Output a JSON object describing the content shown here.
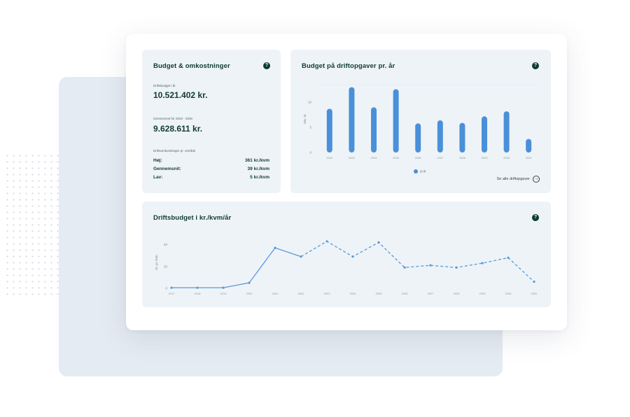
{
  "budget": {
    "title": "Budget & omkostninger",
    "help": "?",
    "driftsbudget_label": "Driftsbudget i år",
    "driftsbudget_value": "10.521.402 kr.",
    "gennemsnit_label": "Gennemsnit for 2020 - 2030",
    "gennemsnit_value": "9.628.611 kr.",
    "omk_label": "Driftsomkostninger pr. område",
    "rows": [
      {
        "label": "Høj:",
        "value": "361 kr./kvm"
      },
      {
        "label": "Gennemsnit:",
        "value": "39 kr./kvm"
      },
      {
        "label": "Lav:",
        "value": "5 kr./kvm"
      }
    ]
  },
  "bar_panel": {
    "title": "Budget på driftopgaver pr. år",
    "help": "?",
    "see_all": "Se alle driftopgaver",
    "arrow": "→"
  },
  "line_panel": {
    "title": "Driftsbudget i kr./kvm/år",
    "help": "?"
  },
  "colors": {
    "bar": "#4a90d9",
    "line": "#5a9ad6",
    "text_dark": "#0f3b2e",
    "panel": "#eef3f8"
  },
  "chart_data": [
    {
      "type": "bar",
      "title": "Budget på driftopgaver pr. år",
      "ylabel": "Mio. kr.",
      "yticks": [
        0,
        5,
        10
      ],
      "ylim": [
        0,
        13.5
      ],
      "categories": [
        "2022",
        "2023",
        "2024",
        "2025",
        "2026",
        "2027",
        "2028",
        "2029",
        "2030",
        "2031"
      ],
      "values": [
        8.7,
        13,
        9,
        12.6,
        5.8,
        6.4,
        5.9,
        7.2,
        8.2,
        2.7
      ],
      "legend": [
        "Drift"
      ],
      "legend_position": "bottom"
    },
    {
      "type": "line",
      "title": "Driftsbudget i kr./kvm/år",
      "ylabel": "Kr. pr. kvm",
      "yticks": [
        0,
        20,
        40
      ],
      "ylim": [
        0,
        50
      ],
      "x": [
        "2017",
        "2018",
        "2019",
        "2020",
        "2021",
        "2022",
        "2023",
        "2024",
        "2025",
        "2026",
        "2027",
        "2028",
        "2029",
        "2030",
        "2031"
      ],
      "values": [
        0.5,
        0.5,
        0.5,
        5,
        37,
        29,
        43,
        29,
        42,
        19,
        21,
        19,
        23,
        28,
        6
      ],
      "solid_until_index": 5,
      "grid": false
    }
  ]
}
